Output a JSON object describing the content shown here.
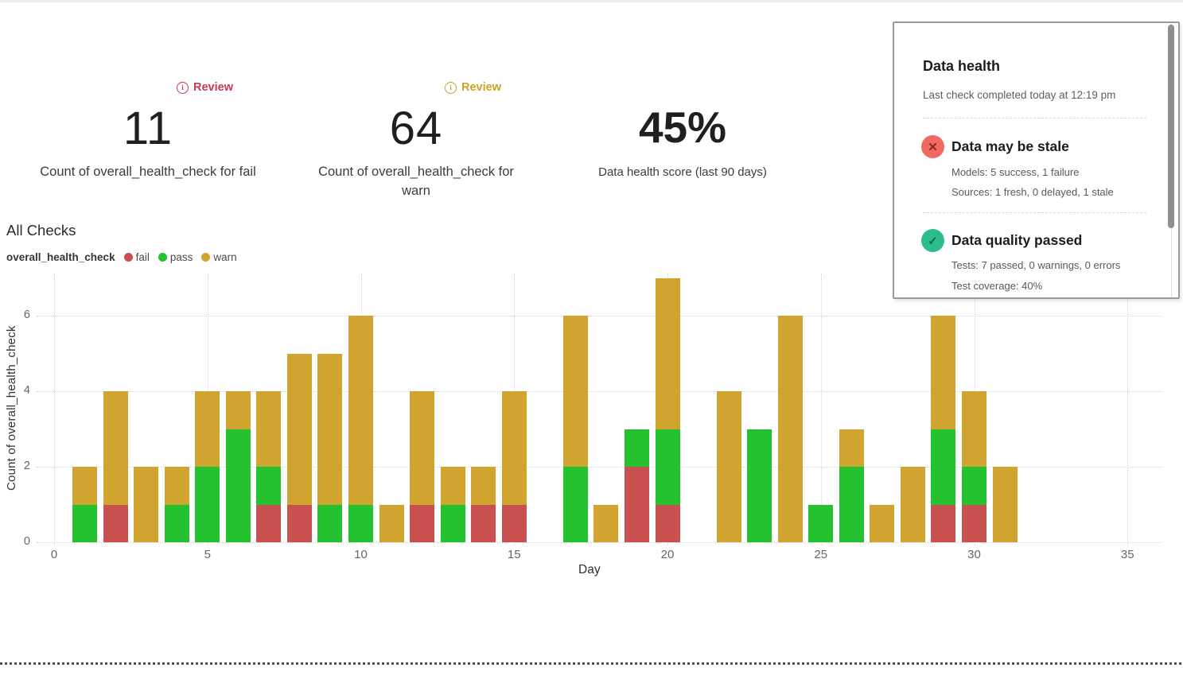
{
  "metrics": [
    {
      "badge": "Review",
      "badge_color": "#c23b50",
      "value": "11",
      "label": "Count of overall_health_check for fail"
    },
    {
      "badge": "Review",
      "badge_color": "#c9a227",
      "value": "64",
      "label": "Count of overall_health_check for warn"
    },
    {
      "value": "45%",
      "label": "Data health score (last 90 days)"
    }
  ],
  "chart_section": {
    "title": "All Checks",
    "legend_title": "overall_health_check",
    "legend": [
      {
        "label": "fail",
        "color": "#c8504e"
      },
      {
        "label": "pass",
        "color": "#24c22e"
      },
      {
        "label": "warn",
        "color": "#d1a42f"
      }
    ]
  },
  "chart_data": {
    "type": "bar",
    "stacked": true,
    "title": "All Checks",
    "xlabel": "Day",
    "ylabel": "Count of overall_health_check",
    "x": [
      1,
      2,
      3,
      4,
      5,
      6,
      7,
      8,
      9,
      10,
      11,
      12,
      13,
      14,
      15,
      16,
      17,
      18,
      19,
      20,
      21,
      22,
      23,
      24,
      25,
      26,
      27,
      28,
      29,
      30,
      31
    ],
    "series": [
      {
        "name": "fail",
        "color": "#c8504e",
        "values": [
          0,
          1,
          0,
          0,
          0,
          0,
          1,
          1,
          0,
          0,
          0,
          1,
          0,
          1,
          1,
          0,
          0,
          0,
          2,
          1,
          0,
          0,
          0,
          0,
          0,
          0,
          0,
          0,
          1,
          1,
          0
        ]
      },
      {
        "name": "pass",
        "color": "#24c22e",
        "values": [
          1,
          0,
          0,
          1,
          2,
          3,
          1,
          0,
          1,
          1,
          0,
          0,
          1,
          0,
          0,
          0,
          2,
          0,
          1,
          2,
          0,
          0,
          3,
          0,
          1,
          2,
          0,
          0,
          2,
          1,
          0
        ]
      },
      {
        "name": "warn",
        "color": "#d1a42f",
        "values": [
          1,
          3,
          2,
          1,
          2,
          1,
          2,
          4,
          4,
          5,
          1,
          3,
          1,
          1,
          3,
          0,
          4,
          1,
          0,
          4,
          0,
          4,
          0,
          6,
          0,
          1,
          1,
          2,
          3,
          2,
          2
        ]
      }
    ],
    "xlim": [
      0,
      35
    ],
    "ylim": [
      0,
      7.1
    ],
    "xticks": [
      0,
      5,
      10,
      15,
      20,
      25,
      30,
      35
    ],
    "yticks": [
      0,
      2,
      4,
      6
    ],
    "grid": true,
    "legend_position": "top-left"
  },
  "panel": {
    "title": "Data health",
    "subtitle": "Last check completed today at 12:19 pm",
    "sections": [
      {
        "icon": "x-circle-icon",
        "icon_glyph": "✕",
        "icon_bg": "#f16a62",
        "icon_fg": "#892727",
        "title": "Data may be stale",
        "lines": [
          "Models: 5 success, 1 failure",
          "Sources: 1 fresh, 0 delayed, 1 stale"
        ]
      },
      {
        "icon": "check-circle-icon",
        "icon_glyph": "✓",
        "icon_bg": "#2cbd8c",
        "icon_fg": "#0e6647",
        "title": "Data quality passed",
        "lines": [
          "Tests: 7 passed, 0 warnings, 0 errors",
          "Test coverage: 40%"
        ]
      }
    ]
  }
}
